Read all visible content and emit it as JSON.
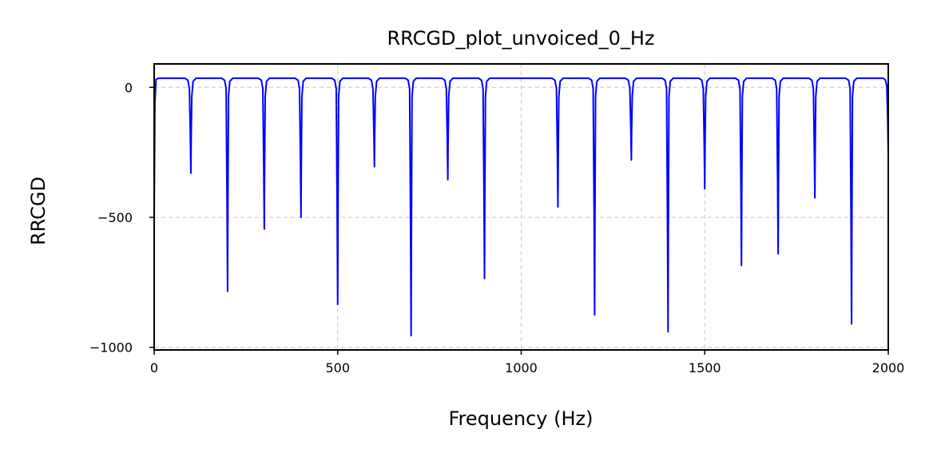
{
  "chart_data": {
    "type": "line",
    "title": "RRCGD_plot_unvoiced_0_Hz",
    "xlabel": "Frequency (Hz)",
    "ylabel": "RRCGD",
    "xlim": [
      0,
      2000
    ],
    "ylim": [
      -1010,
      90
    ],
    "grid": true,
    "x_ticks": [
      0,
      500,
      1000,
      1500,
      2000
    ],
    "x_tick_labels": [
      "0",
      "500",
      "1000",
      "1500",
      "2000"
    ],
    "y_ticks": [
      0,
      -500,
      -1000
    ],
    "y_tick_labels": [
      "0",
      "−500",
      "−1000"
    ],
    "series": [
      {
        "color": "#0000ff",
        "baseline": 35,
        "start_value": -500,
        "end_value": -260,
        "dips": [
          {
            "x": 100,
            "y": -330
          },
          {
            "x": 200,
            "y": -785
          },
          {
            "x": 300,
            "y": -545
          },
          {
            "x": 400,
            "y": -500
          },
          {
            "x": 500,
            "y": -835
          },
          {
            "x": 600,
            "y": -305
          },
          {
            "x": 700,
            "y": -955
          },
          {
            "x": 800,
            "y": -355
          },
          {
            "x": 900,
            "y": -735
          },
          {
            "x": 1100,
            "y": -460
          },
          {
            "x": 1200,
            "y": -875
          },
          {
            "x": 1300,
            "y": -280
          },
          {
            "x": 1400,
            "y": -940
          },
          {
            "x": 1500,
            "y": -390
          },
          {
            "x": 1600,
            "y": -685
          },
          {
            "x": 1700,
            "y": -640
          },
          {
            "x": 1800,
            "y": -425
          },
          {
            "x": 1900,
            "y": -910
          }
        ]
      }
    ]
  }
}
